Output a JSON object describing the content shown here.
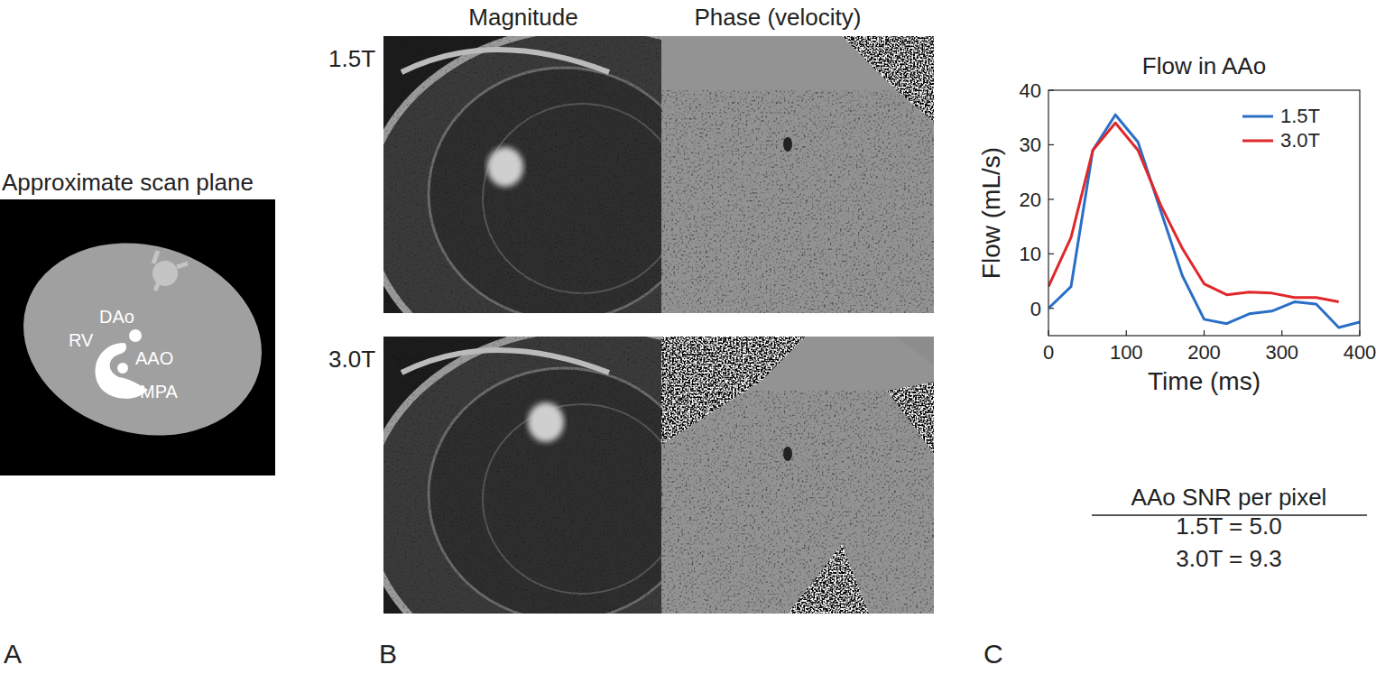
{
  "panel_labels": [
    "A",
    "B",
    "C"
  ],
  "scan_plane": {
    "title": "Approximate scan plane",
    "labels": [
      "DAo",
      "RV",
      "AAO",
      "MPA"
    ]
  },
  "images": {
    "columns": [
      "Magnitude",
      "Phase (velocity)"
    ],
    "rows": [
      "1.5T",
      "3.0T"
    ]
  },
  "chart_data": {
    "type": "line",
    "title": "Flow in AAo",
    "x_label": "Time (ms)",
    "y_label": "Flow (mL/s)",
    "series": [
      {
        "name": "1.5T",
        "color": "#2a6fc6",
        "x": [
          0,
          29,
          57,
          86,
          115,
          144,
          172,
          200,
          229,
          258,
          287,
          316,
          344,
          373,
          400
        ],
        "values": [
          0,
          4,
          29,
          35.5,
          30.5,
          18,
          6,
          -2,
          -2.8,
          -1,
          -0.5,
          1.2,
          0.8,
          -3.5,
          -2.5
        ]
      },
      {
        "name": "3.0T",
        "color": "#e0272b",
        "x": [
          0,
          29,
          57,
          86,
          115,
          144,
          172,
          200,
          229,
          258,
          287,
          316,
          344,
          373
        ],
        "values": [
          4,
          13,
          29,
          34,
          29,
          19,
          11,
          4.5,
          2.5,
          3,
          2.8,
          2,
          2,
          1.2
        ]
      }
    ],
    "xlim": [
      0,
      400
    ],
    "ylim": [
      -5,
      40
    ],
    "xticks": [
      0,
      100,
      200,
      300,
      400
    ],
    "yticks": [
      0,
      10,
      20,
      30,
      40
    ],
    "grid": false,
    "legend": "upper right"
  },
  "snr_table": {
    "title": "AAo SNR per pixel",
    "rows": [
      "1.5T = 5.0",
      "3.0T = 9.3"
    ]
  }
}
